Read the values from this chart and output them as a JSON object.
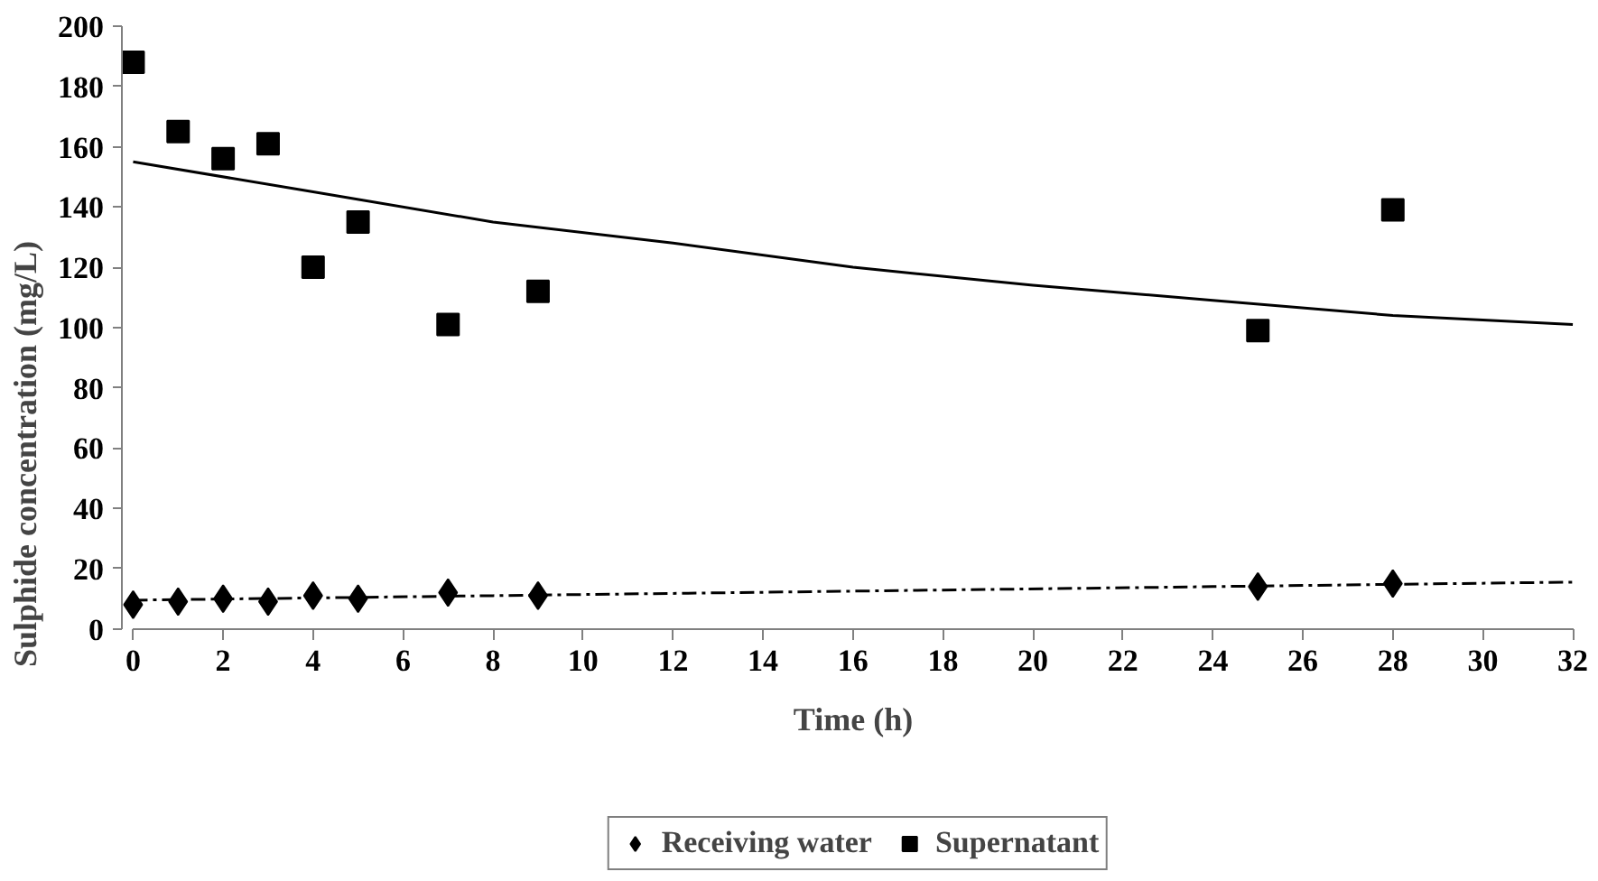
{
  "chart_data": {
    "type": "scatter",
    "xlabel": "Time (h)",
    "ylabel": "Sulphide concentration (mg/L)",
    "xlim": [
      0,
      32
    ],
    "xticks": [
      0,
      2,
      4,
      6,
      8,
      10,
      12,
      14,
      16,
      18,
      20,
      22,
      24,
      26,
      28,
      30,
      32
    ],
    "ylim": [
      0,
      200
    ],
    "yticks": [
      0,
      20,
      40,
      60,
      80,
      100,
      120,
      140,
      160,
      180,
      200
    ],
    "grid": false,
    "legend": "bottom",
    "series": [
      {
        "name": "Receiving water",
        "color": "#000000",
        "marker": "diamond",
        "x": [
          0,
          1,
          2,
          3,
          4,
          5,
          7,
          9,
          25,
          28
        ],
        "values": [
          8,
          9,
          10,
          9,
          11,
          10,
          12,
          11,
          14,
          15
        ]
      },
      {
        "name": "Supernatant",
        "color": "#000000",
        "marker": "square",
        "x": [
          0,
          1,
          2,
          3,
          4,
          5,
          7,
          9,
          25,
          28
        ],
        "values": [
          188,
          165,
          156,
          161,
          120,
          135,
          101,
          112,
          99,
          139
        ]
      },
      {
        "color": "#000000",
        "type": "line",
        "line_style": "solid",
        "x": [
          0,
          4,
          8,
          12,
          16,
          20,
          24,
          28,
          32
        ],
        "values": [
          155,
          145,
          135,
          128,
          120,
          114,
          109,
          104,
          101
        ]
      },
      {
        "color": "#000000",
        "type": "line",
        "line_style": "dashed",
        "x": [
          0,
          8,
          16,
          24,
          32
        ],
        "values": [
          9.5,
          11,
          12.5,
          14,
          15.5
        ]
      }
    ]
  }
}
